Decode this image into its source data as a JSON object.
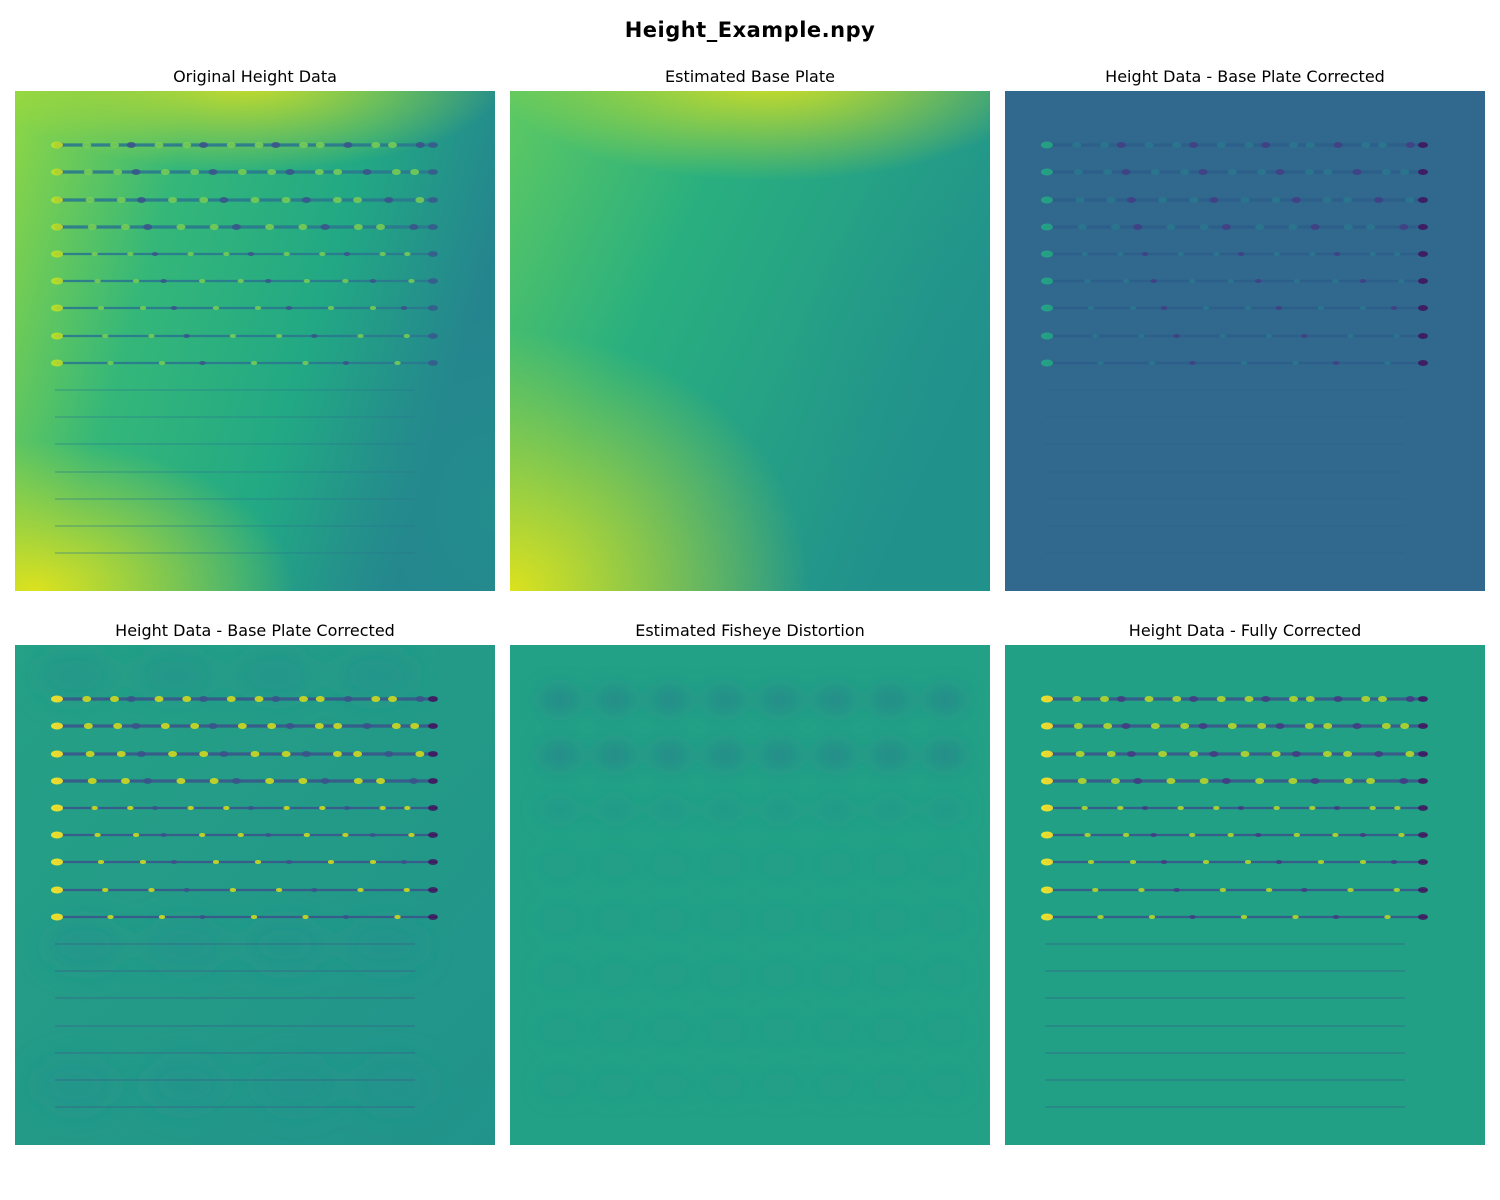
{
  "figure": {
    "title": "Height_Example.npy"
  },
  "chart_data": [
    {
      "type": "heatmap",
      "title": "Original Height Data",
      "variant": "original",
      "colormap": "viridis",
      "axes": "off"
    },
    {
      "type": "heatmap",
      "title": "Estimated Base Plate",
      "variant": "base-plate",
      "colormap": "viridis",
      "axes": "off"
    },
    {
      "type": "heatmap",
      "title": "Height Data - Base Plate Corrected",
      "variant": "base-corrected-dark",
      "colormap": "viridis",
      "axes": "off"
    },
    {
      "type": "heatmap",
      "title": "Height Data - Base Plate Corrected",
      "variant": "base-corrected",
      "colormap": "viridis",
      "axes": "off"
    },
    {
      "type": "heatmap",
      "title": "Estimated Fisheye Distortion",
      "variant": "fisheye",
      "colormap": "viridis",
      "axes": "off"
    },
    {
      "type": "heatmap",
      "title": "Height Data - Fully Corrected",
      "variant": "fully-corrected",
      "colormap": "viridis",
      "axes": "off"
    }
  ],
  "colors": {
    "viridis_yellow": "#e5e419",
    "viridis_green": "#3fbc73",
    "viridis_teal": "#21918c",
    "viridis_blue": "#31688e",
    "viridis_purple": "#440154"
  }
}
